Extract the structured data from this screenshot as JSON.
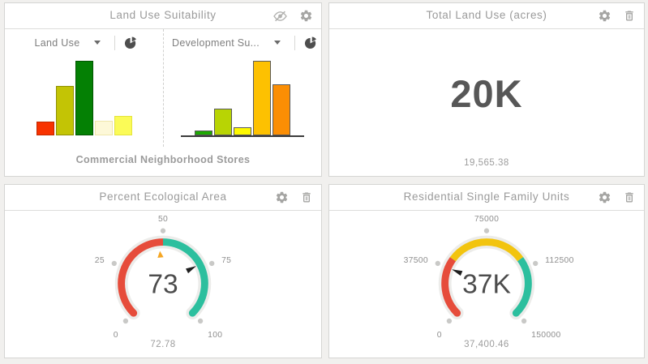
{
  "page": {
    "background": "#f1f0ee"
  },
  "colors": {
    "gauge_red": "#e64c3b",
    "gauge_yellow": "#f2c40f",
    "gauge_teal": "#2cbf9e",
    "threshold_orange": "#f5a623",
    "needle_black": "#1e1e1e",
    "tick_dot_gray": "#c9c9c7",
    "gauge_track_gray": "#ececea",
    "panel_border": "#d5d5d3"
  },
  "icons": {
    "visibility": "eye-off",
    "settings": "gear",
    "delete": "trash",
    "chart_type": "pie-chart",
    "dropdown": "chevron-down"
  },
  "panels": {
    "land_use_suitability": {
      "title": "Land Use Suitability",
      "caption": "Commercial Neighborhood Stores",
      "selectors": [
        {
          "label": "Land Use"
        },
        {
          "label": "Development Su..."
        }
      ]
    },
    "total_land_use": {
      "title": "Total Land Use (acres)",
      "value": "20K",
      "exact_value": "19,565.38"
    },
    "percent_ecological_area": {
      "title": "Percent Ecological Area"
    },
    "residential_single_family_units": {
      "title": "Residential Single Family Units"
    }
  },
  "chart_data": [
    {
      "id": "land-use-bars",
      "type": "bar",
      "title": "Land Use",
      "categories": [
        "",
        "",
        "",
        "",
        ""
      ],
      "values": [
        18,
        66,
        100,
        20,
        26
      ],
      "bar_colors": [
        "#f83200",
        "#c3c405",
        "#048004",
        "#fdf8d8",
        "#fbfb57"
      ],
      "bar_borders": [
        "#c02800",
        "#8f9003",
        "#025502",
        "#efe7ad",
        "#e3e33c"
      ],
      "axis": false,
      "ylabel": "",
      "xlabel": ""
    },
    {
      "id": "development-suitability-bars",
      "type": "bar",
      "title": "Development Su...",
      "categories": [
        "",
        "",
        "",
        "",
        ""
      ],
      "values": [
        6,
        36,
        11,
        100,
        68
      ],
      "bar_colors": [
        "#1ea902",
        "#b8d404",
        "#fef900",
        "#fdc101",
        "#fb8e04"
      ],
      "bar_borders": [
        "#5a5a5a",
        "#5a5a5a",
        "#5a5a5a",
        "#5a5a5a",
        "#5a5a5a"
      ],
      "axis": true,
      "ylabel": "",
      "xlabel": ""
    },
    {
      "id": "percent-ecological-gauge",
      "type": "gauge",
      "title": "Percent Ecological Area",
      "value": 73,
      "display": "73",
      "exact": "72.78",
      "min": 0,
      "max": 100,
      "ticks": [
        0,
        25,
        50,
        75,
        100
      ],
      "segments": [
        {
          "from": 0,
          "to": 50,
          "color": "#e64c3b"
        },
        {
          "from": 50,
          "to": 100,
          "color": "#2cbf9e"
        }
      ],
      "threshold": 48
    },
    {
      "id": "residential-units-gauge",
      "type": "gauge",
      "title": "Residential Single Family Units",
      "value": 37400.46,
      "display": "37K",
      "exact": "37,400.46",
      "min": 0,
      "max": 150000,
      "ticks": [
        0,
        37500,
        75000,
        112500,
        150000
      ],
      "segments": [
        {
          "from": 0,
          "to": 45000,
          "color": "#e64c3b"
        },
        {
          "from": 45000,
          "to": 105000,
          "color": "#f2c40f"
        },
        {
          "from": 105000,
          "to": 150000,
          "color": "#2cbf9e"
        }
      ],
      "threshold": null
    }
  ]
}
